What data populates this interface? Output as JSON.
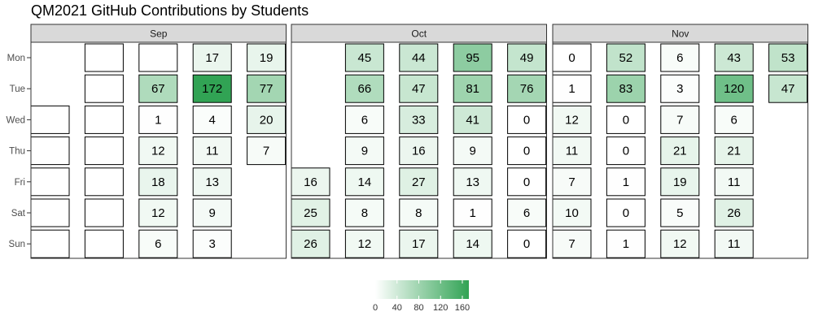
{
  "chart_data": {
    "type": "heatmap",
    "title": "QM2021 GitHub Contributions by Students",
    "facets": [
      "Sep",
      "Oct",
      "Nov"
    ],
    "weekdays": [
      "Mon",
      "Tue",
      "Wed",
      "Thu",
      "Fri",
      "Sat",
      "Sun"
    ],
    "cells": {
      "Sep": [
        [
          [
            1,
            "Wed",
            null
          ],
          [
            1,
            "Thu",
            null
          ],
          [
            1,
            "Fri",
            null
          ],
          [
            1,
            "Sat",
            null
          ],
          [
            1,
            "Sun",
            null
          ]
        ],
        [
          [
            2,
            "Mon",
            null
          ],
          [
            2,
            "Tue",
            null
          ],
          [
            2,
            "Wed",
            null
          ],
          [
            2,
            "Thu",
            null
          ],
          [
            2,
            "Fri",
            null
          ],
          [
            2,
            "Sat",
            null
          ],
          [
            2,
            "Sun",
            null
          ]
        ],
        [
          [
            3,
            "Mon",
            null
          ],
          [
            3,
            "Tue",
            67
          ],
          [
            3,
            "Wed",
            1
          ],
          [
            3,
            "Thu",
            12
          ],
          [
            3,
            "Fri",
            18
          ],
          [
            3,
            "Sat",
            12
          ],
          [
            3,
            "Sun",
            6
          ]
        ],
        [
          [
            4,
            "Mon",
            17
          ],
          [
            4,
            "Tue",
            172
          ],
          [
            4,
            "Wed",
            4
          ],
          [
            4,
            "Thu",
            11
          ],
          [
            4,
            "Fri",
            13
          ],
          [
            4,
            "Sat",
            9
          ],
          [
            4,
            "Sun",
            3
          ]
        ],
        [
          [
            5,
            "Mon",
            19
          ],
          [
            5,
            "Tue",
            77
          ],
          [
            5,
            "Wed",
            20
          ],
          [
            5,
            "Thu",
            7
          ]
        ]
      ],
      "Oct": [
        [
          [
            1,
            "Fri",
            16
          ],
          [
            1,
            "Sat",
            25
          ],
          [
            1,
            "Sun",
            26
          ]
        ],
        [
          [
            2,
            "Mon",
            45
          ],
          [
            2,
            "Tue",
            66
          ],
          [
            2,
            "Wed",
            6
          ],
          [
            2,
            "Thu",
            9
          ],
          [
            2,
            "Fri",
            14
          ],
          [
            2,
            "Sat",
            8
          ],
          [
            2,
            "Sun",
            12
          ]
        ],
        [
          [
            3,
            "Mon",
            44
          ],
          [
            3,
            "Tue",
            47
          ],
          [
            3,
            "Wed",
            33
          ],
          [
            3,
            "Thu",
            16
          ],
          [
            3,
            "Fri",
            27
          ],
          [
            3,
            "Sat",
            8
          ],
          [
            3,
            "Sun",
            17
          ]
        ],
        [
          [
            4,
            "Mon",
            95
          ],
          [
            4,
            "Tue",
            81
          ],
          [
            4,
            "Wed",
            41
          ],
          [
            4,
            "Thu",
            9
          ],
          [
            4,
            "Fri",
            13
          ],
          [
            4,
            "Sat",
            1
          ],
          [
            4,
            "Sun",
            14
          ]
        ],
        [
          [
            5,
            "Mon",
            49
          ],
          [
            5,
            "Tue",
            76
          ],
          [
            5,
            "Wed",
            0
          ],
          [
            5,
            "Thu",
            0
          ],
          [
            5,
            "Fri",
            0
          ],
          [
            5,
            "Sat",
            6
          ],
          [
            5,
            "Sun",
            0
          ]
        ]
      ],
      "Nov": [
        [
          [
            1,
            "Mon",
            0
          ],
          [
            1,
            "Tue",
            1
          ],
          [
            1,
            "Wed",
            12
          ],
          [
            1,
            "Thu",
            11
          ],
          [
            1,
            "Fri",
            7
          ],
          [
            1,
            "Sat",
            10
          ],
          [
            1,
            "Sun",
            7
          ]
        ],
        [
          [
            2,
            "Mon",
            52
          ],
          [
            2,
            "Tue",
            83
          ],
          [
            2,
            "Wed",
            0
          ],
          [
            2,
            "Thu",
            0
          ],
          [
            2,
            "Fri",
            1
          ],
          [
            2,
            "Sat",
            0
          ],
          [
            2,
            "Sun",
            1
          ]
        ],
        [
          [
            3,
            "Mon",
            6
          ],
          [
            3,
            "Tue",
            3
          ],
          [
            3,
            "Wed",
            7
          ],
          [
            3,
            "Thu",
            21
          ],
          [
            3,
            "Fri",
            19
          ],
          [
            3,
            "Sat",
            5
          ],
          [
            3,
            "Sun",
            12
          ]
        ],
        [
          [
            4,
            "Mon",
            43
          ],
          [
            4,
            "Tue",
            120
          ],
          [
            4,
            "Wed",
            6
          ],
          [
            4,
            "Thu",
            21
          ],
          [
            4,
            "Fri",
            11
          ],
          [
            4,
            "Sat",
            26
          ],
          [
            4,
            "Sun",
            11
          ]
        ],
        [
          [
            5,
            "Mon",
            53
          ],
          [
            5,
            "Tue",
            47
          ]
        ]
      ]
    },
    "legend": {
      "ticks": [
        0,
        40,
        80,
        120,
        160
      ],
      "range": [
        0,
        172
      ],
      "colors": [
        "#ffffff",
        "#31a354"
      ],
      "placement": "bottom"
    },
    "colors": {
      "strip_fill": "#d9d9d9",
      "panel_border": "#333333",
      "cell_border": "#000000"
    }
  }
}
